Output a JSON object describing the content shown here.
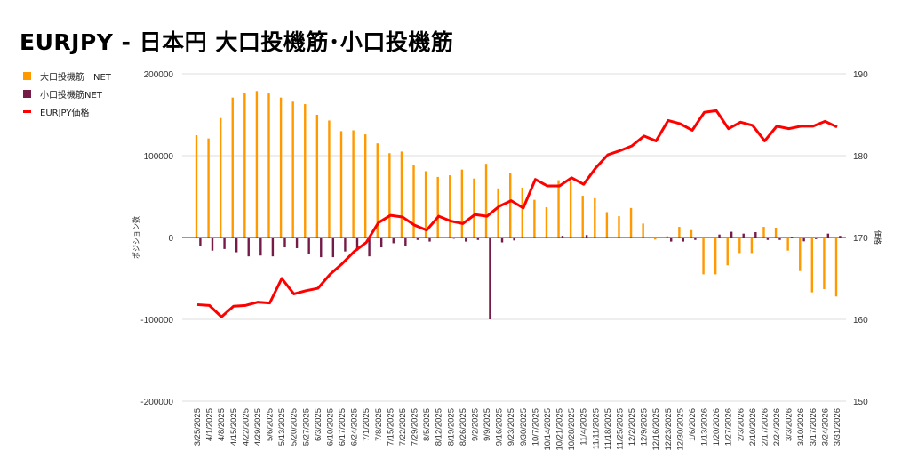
{
  "chart_data": {
    "type": "bar+line",
    "title": "EURJPY - 日本円 大口投機筋･小口投機筋",
    "ylabel_left": "ポジション数",
    "ylabel_right": "価格",
    "xlabel": "",
    "ylim_left": [
      -200000,
      200000
    ],
    "ylim_right": [
      150,
      190
    ],
    "yticks_left": [
      "200000",
      "100000",
      "0",
      "-100000",
      "-200000"
    ],
    "yticks_right": [
      "190",
      "180",
      "170",
      "160",
      "150"
    ],
    "grid": true,
    "legend_position": "top-left",
    "colors": {
      "large": "#FF9900",
      "small": "#741B47",
      "price": "#FF0000"
    },
    "categories": [
      "3/25/2025",
      "4/1/2025",
      "4/8/2025",
      "4/15/2025",
      "4/22/2025",
      "4/29/2025",
      "5/6/2025",
      "5/13/2025",
      "5/20/2025",
      "5/27/2025",
      "6/3/2025",
      "6/10/2025",
      "6/17/2025",
      "6/24/2025",
      "7/1/2025",
      "7/8/2025",
      "7/15/2025",
      "7/22/2025",
      "7/29/2025",
      "8/5/2025",
      "8/12/2025",
      "8/19/2025",
      "8/26/2025",
      "9/2/2025",
      "9/9/2025",
      "9/16/2025",
      "9/23/2025",
      "9/30/2025",
      "10/7/2025",
      "10/14/2025",
      "10/21/2025",
      "10/28/2025",
      "11/4/2025",
      "11/11/2025",
      "11/18/2025",
      "11/25/2025",
      "12/2/2025",
      "12/9/2025",
      "12/16/2025",
      "12/23/2025",
      "12/30/2025",
      "1/6/2026",
      "1/13/2026",
      "1/20/2026",
      "1/27/2026",
      "2/3/2026",
      "2/10/2026",
      "2/17/2026",
      "2/24/2026",
      "3/3/2026",
      "3/10/2026",
      "3/17/2026",
      "3/24/2026",
      "3/31/2026"
    ],
    "series": [
      {
        "name": "大口投機筋　NET",
        "type": "bar",
        "axis": "left",
        "values": [
          125000,
          121000,
          146000,
          171000,
          177000,
          179000,
          176000,
          171000,
          166000,
          163000,
          150000,
          143000,
          130000,
          131000,
          126000,
          115000,
          103000,
          105000,
          88000,
          81000,
          74000,
          76000,
          83000,
          72000,
          90000,
          60000,
          79000,
          61000,
          46000,
          37000,
          70000,
          68000,
          51000,
          48000,
          31000,
          26000,
          36000,
          17000,
          -2500,
          1500,
          13000,
          9000,
          -45000,
          -45000,
          -34000,
          -19000,
          -19000,
          13000,
          12000,
          -16000,
          -41000,
          -67000,
          -63000,
          -72000
        ]
      },
      {
        "name": "小口投機筋NET",
        "type": "bar",
        "axis": "left",
        "values": [
          -9800,
          -16000,
          -14000,
          -18000,
          -23000,
          -22000,
          -23000,
          -12000,
          -13000,
          -20000,
          -24000,
          -24000,
          -17000,
          -16000,
          -23000,
          -12000,
          -7000,
          -10000,
          -3000,
          -5000,
          -500,
          -1500,
          -5000,
          -3000,
          -100000,
          -6000,
          -3600,
          0,
          0,
          0,
          2000,
          0,
          3000,
          0,
          0,
          -1000,
          -1000,
          0,
          -1000,
          -5000,
          -5000,
          -3000,
          0,
          3600,
          7000,
          4700,
          6500,
          -3000,
          -3000,
          1000,
          -4700,
          -2000,
          4700,
          2000
        ]
      },
      {
        "name": "EURJPY価格",
        "type": "line",
        "axis": "right",
        "values": [
          161.8,
          161.7,
          160.3,
          161.6,
          161.7,
          162.1,
          162.0,
          165.0,
          163.1,
          163.5,
          163.8,
          165.5,
          166.8,
          168.3,
          169.4,
          171.8,
          172.7,
          172.5,
          171.5,
          170.9,
          172.6,
          172.0,
          171.7,
          172.8,
          172.6,
          173.8,
          174.5,
          173.6,
          177.1,
          176.3,
          176.3,
          177.3,
          176.5,
          178.5,
          180.1,
          180.6,
          181.2,
          182.4,
          181.8,
          184.3,
          183.9,
          183.1,
          185.3,
          185.5,
          183.3,
          184.1,
          183.7,
          181.8,
          183.6,
          183.3,
          183.6,
          183.6,
          184.2,
          183.5
        ]
      }
    ]
  }
}
